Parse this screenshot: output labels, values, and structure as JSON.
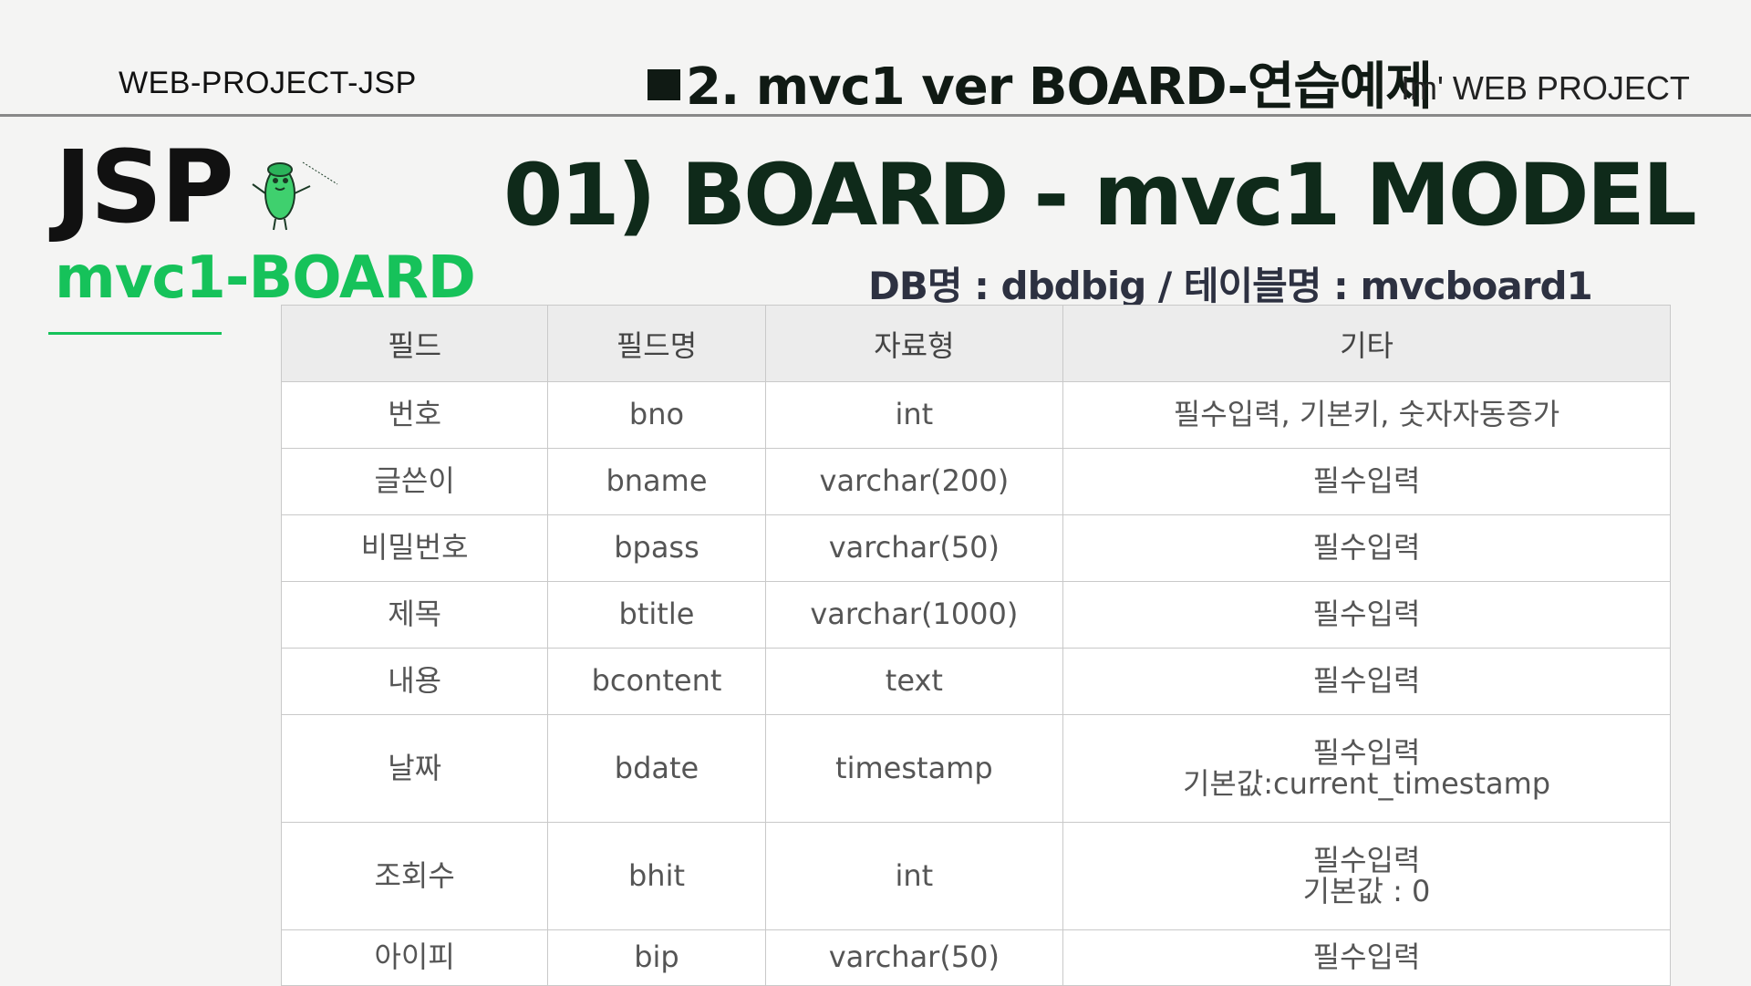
{
  "header": {
    "left": "WEB-PROJECT-JSP",
    "center": "2. mvc1 ver  BOARD-연습예제",
    "right": "Im'  WEB PROJECT"
  },
  "brand": {
    "logo_text": "JSP",
    "subtitle": "mvc1-BOARD",
    "mascot_icon": "bean-mascot-icon"
  },
  "heading": "01) BOARD - mvc1  MODEL",
  "db_info": "DB명 : dbdbig / 테이블명 : mvcboard1",
  "table": {
    "headers": [
      "필드",
      "필드명",
      "자료형",
      "기타"
    ],
    "rows": [
      {
        "field": "번호",
        "name": "bno",
        "type": "int",
        "note": [
          "필수입력, 기본키, 숫자자동증가"
        ]
      },
      {
        "field": "글쓴이",
        "name": "bname",
        "type": "varchar(200)",
        "note": [
          "필수입력"
        ]
      },
      {
        "field": "비밀번호",
        "name": "bpass",
        "type": "varchar(50)",
        "note": [
          "필수입력"
        ]
      },
      {
        "field": "제목",
        "name": "btitle",
        "type": "varchar(1000)",
        "note": [
          "필수입력"
        ]
      },
      {
        "field": "내용",
        "name": "bcontent",
        "type": "text",
        "note": [
          "필수입력"
        ]
      },
      {
        "field": "날짜",
        "name": "bdate",
        "type": "timestamp",
        "note": [
          "필수입력",
          "기본값:current_timestamp"
        ]
      },
      {
        "field": "조회수",
        "name": "bhit",
        "type": "int",
        "note": [
          "필수입력",
          "기본값 : 0"
        ]
      },
      {
        "field": "아이피",
        "name": "bip",
        "type": "varchar(50)",
        "note": [
          "필수입력"
        ]
      }
    ]
  },
  "colors": {
    "accent_green": "#16c25a",
    "heading_dark": "#0f2a1a",
    "db_info": "#2d3141"
  }
}
